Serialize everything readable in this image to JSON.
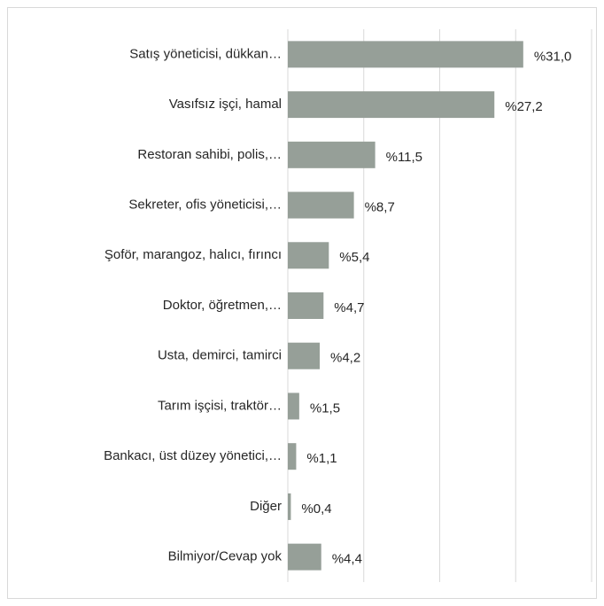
{
  "chart_data": {
    "type": "bar",
    "orientation": "horizontal",
    "categories": [
      "Satış yöneticisi, dükkan…",
      "Vasıfsız işçi, hamal",
      "Restoran sahibi, polis,…",
      "Sekreter, ofis yöneticisi,…",
      "Şoför, marangoz, halıcı, fırıncı",
      "Doktor, öğretmen,…",
      "Usta, demirci, tamirci",
      "Tarım işçisi, traktör…",
      "Bankacı, üst düzey yönetici,…",
      "Diğer",
      "Bilmiyor/Cevap yok"
    ],
    "values": [
      31.0,
      27.2,
      11.5,
      8.7,
      5.4,
      4.7,
      4.2,
      1.5,
      1.1,
      0.4,
      4.4
    ],
    "value_labels": [
      "%31,0",
      "%27,2",
      "%11,5",
      "%8,7",
      "%5,4",
      "%4,7",
      "%4,2",
      "%1,5",
      "%1,1",
      "%0,4",
      "%4,4"
    ],
    "color": "#969f98",
    "xlim": [
      0,
      40
    ],
    "xticks": [
      0,
      10,
      20,
      30,
      40
    ],
    "grid": true
  }
}
